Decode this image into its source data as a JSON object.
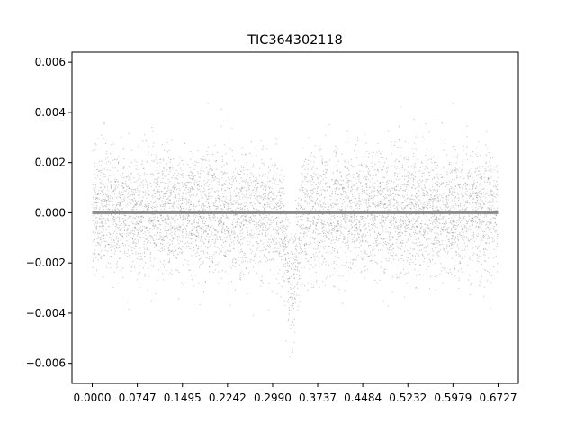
{
  "chart_data": {
    "type": "scatter",
    "title": "TIC364302118",
    "xlabel": "",
    "ylabel": "",
    "xlim": [
      -0.0336,
      0.7063
    ],
    "ylim": [
      -0.0068,
      0.0064
    ],
    "x_ticks": [
      "0.0000",
      "0.0747",
      "0.1495",
      "0.2242",
      "0.2990",
      "0.3737",
      "0.4484",
      "0.5232",
      "0.5979",
      "0.6727"
    ],
    "x_tick_values": [
      0.0,
      0.0747,
      0.1495,
      0.2242,
      0.299,
      0.3737,
      0.4484,
      0.5232,
      0.5979,
      0.6727
    ],
    "y_ticks": [
      "0.006",
      "0.004",
      "0.002",
      "0.000",
      "−0.002",
      "−0.004",
      "−0.006"
    ],
    "y_tick_values": [
      0.006,
      0.004,
      0.002,
      0.0,
      -0.002,
      -0.004,
      -0.006
    ],
    "grid": false,
    "series": [
      {
        "description_kind": "phase-folded flux residuals",
        "color": "#808080",
        "x_range": [
          0.0,
          0.6727
        ],
        "scatter_std": 0.0012,
        "transit_center": 0.33,
        "transit_depth": -0.003
      },
      {
        "description_kind": "binned model",
        "color": "#808080",
        "x": [
          0.0,
          0.3,
          0.33,
          0.36,
          0.6727
        ],
        "y": [
          0.0,
          0.0,
          0.0,
          0.0,
          0.0
        ]
      }
    ]
  }
}
